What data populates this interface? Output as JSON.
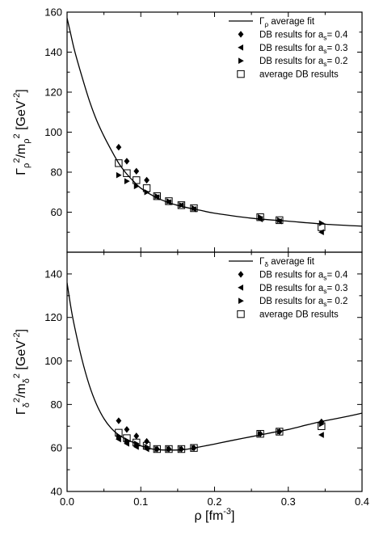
{
  "chart_data": [
    {
      "type": "scatter",
      "panel": "top",
      "ylabel": "Γρ²/mρ² [GeV⁻²]",
      "ylabel_parts": {
        "base": "Γ",
        "sub1": "ρ",
        "sup1": "2",
        "mid": "/m",
        "sub2": "ρ",
        "sup2": "2",
        "unit": " [GeV",
        "unit_sup": "-2",
        "unit_end": "]"
      },
      "xlim": [
        0.0,
        0.4
      ],
      "ylim": [
        40,
        160
      ],
      "yticks": [
        60,
        80,
        100,
        120,
        140,
        160
      ],
      "ytick_labels": [
        "60",
        "80",
        "100",
        "120",
        "140",
        "160"
      ],
      "legend_position": "top-right",
      "legend_labels": {
        "fit": {
          "base": "Γ",
          "sub": "ρ",
          "rest": " average fit"
        },
        "a04": {
          "base": "DB results for a",
          "sub": "s",
          "rest": "= 0.4"
        },
        "a03": {
          "base": "DB results for a",
          "sub": "s",
          "rest": "= 0.3"
        },
        "a02": {
          "base": "DB results for a",
          "sub": "s",
          "rest": "= 0.2"
        },
        "avg": {
          "base": "average DB results",
          "sub": "",
          "rest": ""
        }
      },
      "series": [
        {
          "name": "Γρ average fit",
          "kind": "line",
          "x": [
            0.0,
            0.005,
            0.01,
            0.02,
            0.03,
            0.04,
            0.05,
            0.06,
            0.07,
            0.08,
            0.09,
            0.1,
            0.12,
            0.14,
            0.16,
            0.18,
            0.2,
            0.25,
            0.3,
            0.35,
            0.4
          ],
          "y": [
            157,
            149,
            141,
            128,
            116,
            106,
            98,
            91,
            84.5,
            79.5,
            75.5,
            72,
            67.5,
            64.5,
            62.5,
            61,
            59.5,
            57,
            55.5,
            54,
            53
          ]
        },
        {
          "name": "DB results for as = 0.4",
          "kind": "diamond",
          "x": [
            0.07,
            0.081,
            0.094,
            0.108
          ],
          "y": [
            92.5,
            85.5,
            80.5,
            76
          ]
        },
        {
          "name": "DB results for as = 0.3",
          "kind": "triangle-left",
          "x": [
            0.122,
            0.138,
            0.155,
            0.172,
            0.262,
            0.288,
            0.345
          ],
          "y": [
            67.5,
            65,
            63.5,
            61.5,
            56.5,
            55.5,
            50
          ]
        },
        {
          "name": "DB results for as = 0.2",
          "kind": "triangle-right",
          "x": [
            0.07,
            0.081,
            0.094,
            0.108,
            0.122,
            0.138,
            0.155,
            0.172,
            0.262,
            0.288,
            0.345
          ],
          "y": [
            78.5,
            75.5,
            73,
            70,
            68,
            65.5,
            63.5,
            62,
            57.5,
            56,
            54.5
          ]
        },
        {
          "name": "average DB results",
          "kind": "square",
          "x": [
            0.07,
            0.081,
            0.094,
            0.108,
            0.122,
            0.138,
            0.155,
            0.172,
            0.262,
            0.288,
            0.345
          ],
          "y": [
            84.5,
            79.5,
            76,
            72,
            68,
            65.5,
            63.5,
            62,
            57.5,
            56,
            52.5
          ]
        }
      ]
    },
    {
      "type": "scatter",
      "panel": "bottom",
      "xlabel": "ρ [fm⁻³]",
      "xlabel_parts": {
        "base": "ρ [fm",
        "sup": "-3",
        "end": "]"
      },
      "ylabel": "Γδ²/mδ² [GeV⁻²]",
      "ylabel_parts": {
        "base": "Γ",
        "sub1": "δ",
        "sup1": "2",
        "mid": "/m",
        "sub2": "δ",
        "sup2": "2",
        "unit": " [GeV",
        "unit_sup": "-2",
        "unit_end": "]"
      },
      "xlim": [
        0.0,
        0.4
      ],
      "ylim": [
        40,
        150
      ],
      "xticks": [
        0.0,
        0.1,
        0.2,
        0.3,
        0.4
      ],
      "xtick_labels": [
        "0.0",
        "0.1",
        "0.2",
        "0.3",
        "0.4"
      ],
      "yticks": [
        40,
        60,
        80,
        100,
        120,
        140
      ],
      "ytick_labels": [
        "40",
        "60",
        "80",
        "100",
        "120",
        "140"
      ],
      "legend_position": "top-right",
      "legend_labels": {
        "fit": {
          "base": "Γ",
          "sub": "δ",
          "rest": " average fit"
        },
        "a04": {
          "base": "DB results for a",
          "sub": "s",
          "rest": "= 0.4"
        },
        "a03": {
          "base": "DB results for a",
          "sub": "s",
          "rest": "= 0.3"
        },
        "a02": {
          "base": "DB results for a",
          "sub": "s",
          "rest": "= 0.2"
        },
        "avg": {
          "base": "average DB results",
          "sub": "",
          "rest": ""
        }
      },
      "series": [
        {
          "name": "Γδ average fit",
          "kind": "line",
          "x": [
            0.0,
            0.005,
            0.01,
            0.02,
            0.03,
            0.04,
            0.05,
            0.06,
            0.07,
            0.08,
            0.09,
            0.1,
            0.11,
            0.12,
            0.14,
            0.16,
            0.18,
            0.2,
            0.22,
            0.25,
            0.28,
            0.3,
            0.33,
            0.35,
            0.38,
            0.4
          ],
          "y": [
            136,
            125,
            116,
            101,
            89,
            80,
            73.5,
            69,
            66,
            64,
            62.5,
            61,
            60,
            59.3,
            59,
            59.3,
            60.5,
            61.8,
            63.2,
            65.2,
            67.2,
            68.5,
            71,
            72.5,
            74.5,
            76
          ]
        },
        {
          "name": "DB results for as = 0.4",
          "kind": "diamond",
          "x": [
            0.07,
            0.081,
            0.094,
            0.108,
            0.122,
            0.138,
            0.155,
            0.172,
            0.262,
            0.288,
            0.345
          ],
          "y": [
            72.5,
            68.5,
            65.5,
            63,
            59.5,
            59.5,
            59.5,
            60,
            66.5,
            67.5,
            72
          ]
        },
        {
          "name": "DB results for as = 0.3",
          "kind": "triangle-left",
          "x": [
            0.07,
            0.081,
            0.094,
            0.108,
            0.345
          ],
          "y": [
            64,
            62,
            60.5,
            59.5,
            66
          ]
        },
        {
          "name": "DB results for as = 0.2",
          "kind": "triangle-right",
          "x": [
            0.07,
            0.081,
            0.094,
            0.108,
            0.122,
            0.138,
            0.155,
            0.172,
            0.262,
            0.288,
            0.345
          ],
          "y": [
            65.5,
            63.5,
            62,
            60.5,
            59.5,
            59.5,
            59.5,
            60,
            66.5,
            67.5,
            71
          ]
        },
        {
          "name": "average DB results",
          "kind": "square",
          "x": [
            0.07,
            0.081,
            0.094,
            0.108,
            0.122,
            0.138,
            0.155,
            0.172,
            0.262,
            0.288,
            0.345
          ],
          "y": [
            67,
            64.5,
            62.5,
            61,
            59.5,
            59.5,
            59.5,
            60,
            66.5,
            67.5,
            70
          ]
        }
      ]
    }
  ]
}
